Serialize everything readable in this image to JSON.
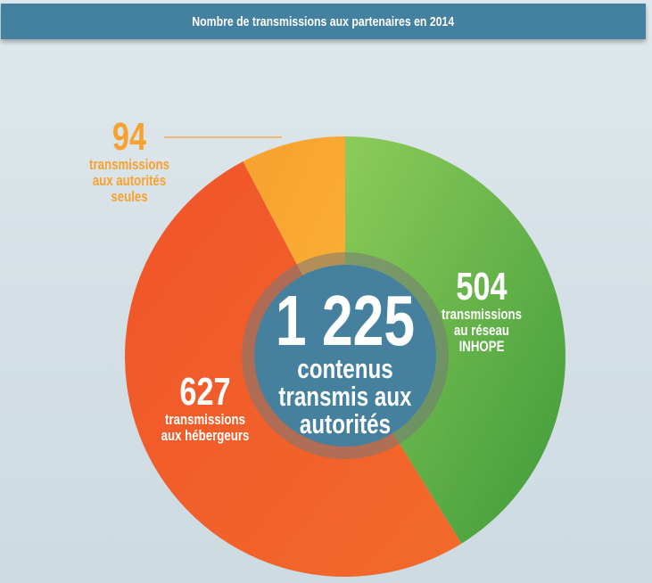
{
  "title": "Nombre de transmissions aux partenaires en 2014",
  "chart_data": {
    "type": "pie",
    "variant": "donut-with-center-label",
    "title": "Nombre de transmissions aux partenaires en 2014",
    "total": {
      "value": "1 225",
      "label_lines": [
        "contenus",
        "transmis aux",
        "autorités"
      ]
    },
    "slices": [
      {
        "value": 504,
        "value_label": "504",
        "label_lines": [
          "transmissions",
          "au réseau",
          "INHOPE"
        ],
        "color_start": "#8dcc5a",
        "color_end": "#3f9a3a"
      },
      {
        "value": 627,
        "value_label": "627",
        "label_lines": [
          "transmissions",
          "aux hébergeurs"
        ],
        "color_start": "#f0542a",
        "color_end": "#f26a2a"
      },
      {
        "value": 94,
        "value_label": "94",
        "label_lines": [
          "transmissions",
          "aux autorités",
          "seules"
        ],
        "color_start": "#f7a12f",
        "color_end": "#fbb034"
      }
    ],
    "start_angle_deg": 0,
    "direction": "clockwise"
  }
}
